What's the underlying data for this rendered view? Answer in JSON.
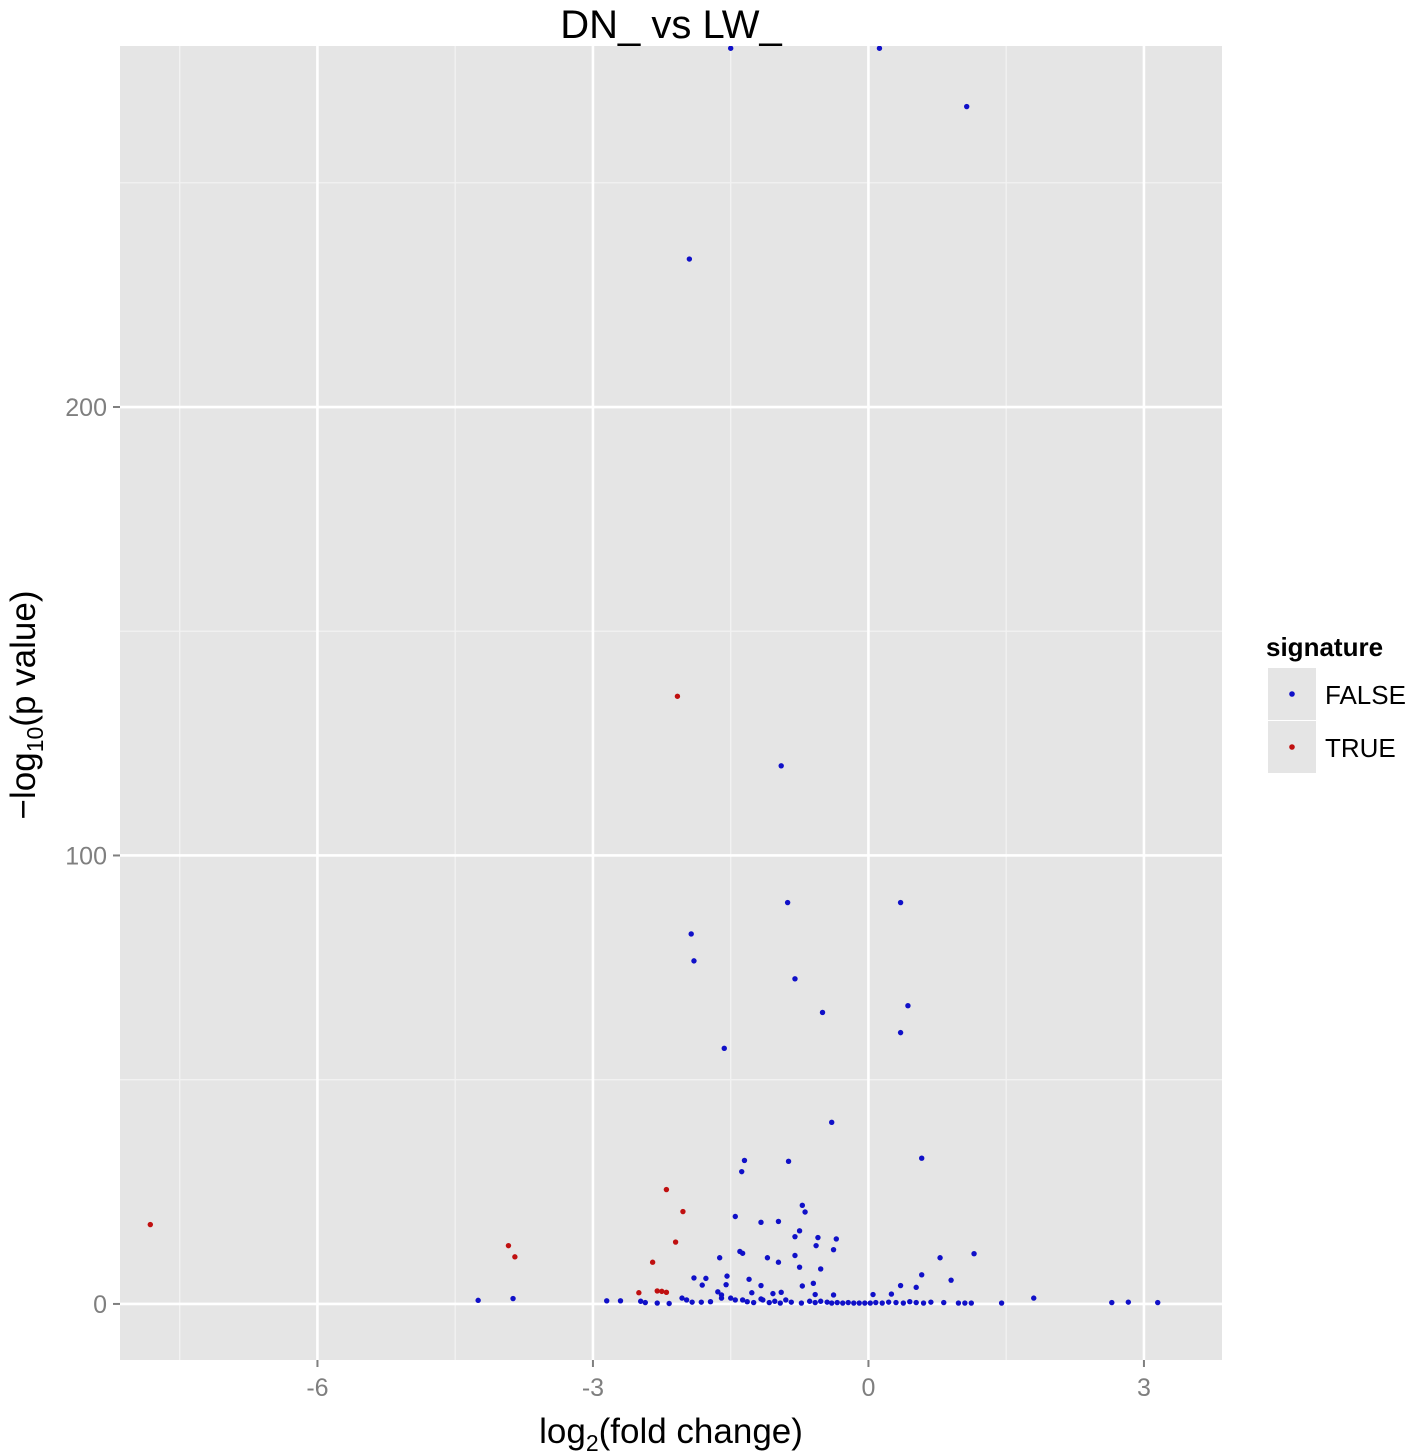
{
  "chart_data": {
    "type": "scatter",
    "title": "DN_  vs  LW_",
    "xlabel": {
      "base": "log",
      "sub": "2",
      "rest": "(fold change)"
    },
    "ylabel": {
      "base": "−log",
      "sub": "10",
      "rest": "(p value)"
    },
    "xlim": [
      -8.15,
      3.85
    ],
    "ylim": [
      -12.5,
      280.5
    ],
    "x_ticks": [
      -6,
      -3,
      0,
      3
    ],
    "x_tick_labels": [
      "-6",
      "-3",
      "0",
      "3"
    ],
    "y_ticks": [
      0,
      100,
      200
    ],
    "y_tick_labels": [
      "0",
      "100",
      "200"
    ],
    "grid": true,
    "legend": {
      "title": "signature",
      "position": "right",
      "entries": [
        {
          "label": "FALSE",
          "color": "#1010c8"
        },
        {
          "label": "TRUE",
          "color": "#c01010"
        }
      ]
    },
    "series": [
      {
        "name": "FALSE",
        "color": "#1010c8",
        "points": [
          [
            -1.5,
            280
          ],
          [
            0.12,
            280
          ],
          [
            1.07,
            267
          ],
          [
            -1.95,
            233
          ],
          [
            -0.95,
            120
          ],
          [
            -0.88,
            89.5
          ],
          [
            0.35,
            89.5
          ],
          [
            -1.93,
            82.5
          ],
          [
            -1.9,
            76.5
          ],
          [
            -0.8,
            72.5
          ],
          [
            0.43,
            66.5
          ],
          [
            -0.5,
            65
          ],
          [
            0.35,
            60.5
          ],
          [
            -1.57,
            57
          ],
          [
            -0.4,
            40.5
          ],
          [
            -1.35,
            32
          ],
          [
            -0.87,
            31.8
          ],
          [
            0.58,
            32.5
          ],
          [
            -1.38,
            29.5
          ],
          [
            -0.72,
            22
          ],
          [
            -0.69,
            20.5
          ],
          [
            -1.45,
            19.5
          ],
          [
            -1.17,
            18.2
          ],
          [
            -0.98,
            18.4
          ],
          [
            -0.75,
            16.3
          ],
          [
            -0.8,
            15
          ],
          [
            -0.55,
            14.8
          ],
          [
            -0.35,
            14.5
          ],
          [
            -0.57,
            13
          ],
          [
            -0.38,
            12.1
          ],
          [
            -1.37,
            11.3
          ],
          [
            -1.4,
            11.7
          ],
          [
            -1.62,
            10.3
          ],
          [
            1.15,
            11.2
          ],
          [
            0.78,
            10.3
          ],
          [
            -0.8,
            10.8
          ],
          [
            -1.1,
            10.3
          ],
          [
            -0.98,
            9.3
          ],
          [
            -0.75,
            8.2
          ],
          [
            -0.52,
            7.8
          ],
          [
            0.58,
            6.5
          ],
          [
            -1.9,
            5.8
          ],
          [
            -1.77,
            5.7
          ],
          [
            -1.54,
            6.2
          ],
          [
            -1.3,
            5.5
          ],
          [
            0.9,
            5.3
          ],
          [
            -1.81,
            4.2
          ],
          [
            -1.55,
            4.3
          ],
          [
            -1.17,
            4.1
          ],
          [
            -0.6,
            4.6
          ],
          [
            0.35,
            4.1
          ],
          [
            -0.72,
            4
          ],
          [
            0.52,
            3.7
          ],
          [
            -1.64,
            2.7
          ],
          [
            -1.6,
            2
          ],
          [
            -1.27,
            2.5
          ],
          [
            -1.04,
            2.3
          ],
          [
            -0.95,
            2.6
          ],
          [
            -0.58,
            2.1
          ],
          [
            -0.38,
            2
          ],
          [
            0.05,
            2.1
          ],
          [
            0.25,
            2.2
          ],
          [
            -4.25,
            0.8
          ],
          [
            -3.87,
            1.2
          ],
          [
            -2.85,
            0.7
          ],
          [
            -2.7,
            0.7
          ],
          [
            -2.48,
            0.6
          ],
          [
            -2.43,
            0.3
          ],
          [
            -2.3,
            0.2
          ],
          [
            -2.17,
            0.1
          ],
          [
            -2.03,
            1.3
          ],
          [
            -1.98,
            0.9
          ],
          [
            -1.92,
            0.4
          ],
          [
            -1.82,
            0.4
          ],
          [
            -1.72,
            0.5
          ],
          [
            -1.6,
            1.3
          ],
          [
            -1.5,
            1.3
          ],
          [
            -1.45,
            0.9
          ],
          [
            -1.37,
            0.9
          ],
          [
            -1.32,
            0.5
          ],
          [
            -1.25,
            0.3
          ],
          [
            -1.17,
            1.1
          ],
          [
            -1.15,
            0.9
          ],
          [
            -1.08,
            0.3
          ],
          [
            -1.02,
            0.6
          ],
          [
            -0.96,
            0.2
          ],
          [
            -0.9,
            0.9
          ],
          [
            -0.84,
            0.4
          ],
          [
            -0.73,
            0.2
          ],
          [
            -0.64,
            0.6
          ],
          [
            -0.58,
            0.3
          ],
          [
            -0.52,
            0.6
          ],
          [
            -0.45,
            0.4
          ],
          [
            -0.4,
            0.2
          ],
          [
            -0.34,
            0.3
          ],
          [
            -0.28,
            0.2
          ],
          [
            -0.22,
            0.3
          ],
          [
            -0.16,
            0.2
          ],
          [
            -0.1,
            0.2
          ],
          [
            -0.04,
            0.2
          ],
          [
            0.02,
            0.2
          ],
          [
            0.08,
            0.3
          ],
          [
            0.15,
            0.2
          ],
          [
            0.22,
            0.4
          ],
          [
            0.3,
            0.3
          ],
          [
            0.38,
            0.2
          ],
          [
            0.45,
            0.5
          ],
          [
            0.52,
            0.3
          ],
          [
            0.6,
            0.2
          ],
          [
            0.68,
            0.4
          ],
          [
            0.82,
            0.3
          ],
          [
            0.98,
            0.2
          ],
          [
            1.05,
            0.2
          ],
          [
            1.12,
            0.2
          ],
          [
            1.45,
            0.2
          ],
          [
            1.8,
            1.3
          ],
          [
            2.65,
            0.3
          ],
          [
            2.83,
            0.4
          ],
          [
            3.15,
            0.3
          ]
        ]
      },
      {
        "name": "TRUE",
        "color": "#c01010",
        "points": [
          [
            -2.08,
            135.5
          ],
          [
            -7.82,
            17.7
          ],
          [
            -2.2,
            25.5
          ],
          [
            -2.02,
            20.6
          ],
          [
            -2.1,
            13.8
          ],
          [
            -3.92,
            13
          ],
          [
            -3.85,
            10.5
          ],
          [
            -2.35,
            9.3
          ],
          [
            -2.3,
            2.9
          ],
          [
            -2.25,
            2.8
          ],
          [
            -2.2,
            2.6
          ],
          [
            -2.5,
            2.5
          ]
        ]
      }
    ]
  }
}
